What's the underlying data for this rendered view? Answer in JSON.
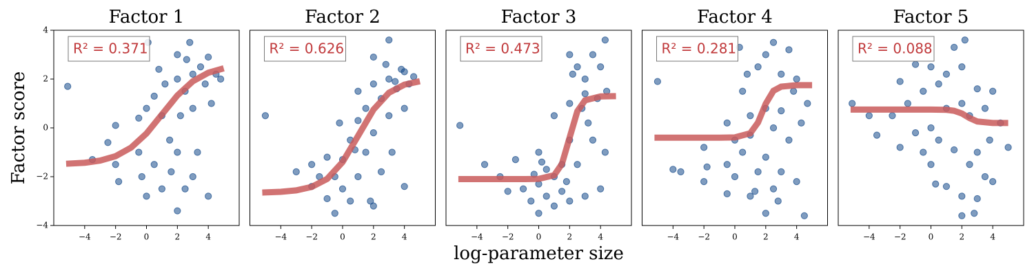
{
  "chart_data": [
    {
      "type": "scatter",
      "title": "Factor 1",
      "annotation": "R² = 0.371",
      "ylabel": "Factor score",
      "xlim": [
        -6,
        6
      ],
      "ylim": [
        -4,
        4
      ],
      "xticks": [
        {
          "value": -4,
          "label": "−4"
        },
        {
          "value": -2,
          "label": "−2"
        },
        0,
        2,
        4
      ],
      "yticks": [
        {
          "value": -4,
          "label": "−4"
        },
        {
          "value": -2,
          "label": "−2"
        },
        0,
        2,
        4
      ],
      "series": [
        {
          "type": "scatter",
          "color": "#154a8a",
          "x": [
            -5.1,
            -3.5,
            -2.5,
            -2,
            -2,
            -1.8,
            -0.5,
            -0.5,
            -0.3,
            0,
            0,
            0.1,
            0.5,
            0.5,
            1,
            1,
            1.2,
            1.5,
            2,
            2,
            2,
            2,
            2.2,
            2.5,
            2.5,
            2.8,
            3,
            3,
            3,
            3.3,
            3.5,
            3.8,
            4,
            4,
            4.2,
            4.5,
            4.8,
            1.6,
            0.8,
            2.6
          ],
          "values": [
            1.7,
            -1.3,
            -0.6,
            -1.5,
            0.1,
            -2.2,
            -1.0,
            0.4,
            -2.0,
            -2.8,
            0.8,
            3.5,
            -1.5,
            1.3,
            -2.5,
            0.5,
            1.8,
            -0.5,
            -3.4,
            -1.0,
            2.0,
            3.0,
            0.5,
            -2.5,
            1.5,
            3.5,
            -2.0,
            2.2,
            0.8,
            -1.0,
            2.5,
            1.8,
            -2.8,
            2.9,
            1.0,
            2.2,
            2.0,
            -1.8,
            2.4,
            2.8
          ]
        },
        {
          "type": "line",
          "color": "#c95b5b",
          "x": [
            -5.2,
            -4,
            -3,
            -2,
            -1,
            0,
            1,
            2,
            3,
            4,
            5
          ],
          "values": [
            -1.47,
            -1.43,
            -1.34,
            -1.16,
            -0.81,
            -0.23,
            0.55,
            1.33,
            1.91,
            2.26,
            2.44
          ]
        }
      ]
    },
    {
      "type": "scatter",
      "title": "Factor 2",
      "annotation": "R² = 0.626",
      "xlim": [
        -6,
        6
      ],
      "ylim": [
        -4,
        4
      ],
      "xticks": [
        {
          "value": -4,
          "label": "−4"
        },
        {
          "value": -2,
          "label": "−2"
        },
        0,
        2,
        4
      ],
      "series": [
        {
          "type": "scatter",
          "color": "#154a8a",
          "x": [
            -5,
            -3,
            -2,
            -2,
            -1,
            -1,
            -0.5,
            -0.5,
            -0.2,
            0,
            0,
            0.5,
            0.5,
            1,
            1,
            1,
            1.5,
            1.5,
            2,
            2,
            2,
            2,
            2.5,
            2.5,
            3,
            3,
            3,
            3.2,
            3.5,
            3.8,
            4,
            4,
            4,
            4.3,
            4.6,
            1.8,
            0.8,
            2.8,
            -1.5,
            3.4
          ],
          "values": [
            0.5,
            -1.8,
            -1.5,
            -2.4,
            -2.9,
            -1.2,
            -3.5,
            -2.0,
            0.2,
            -2.5,
            -1.3,
            -0.5,
            -3.0,
            -2.0,
            0.3,
            1.5,
            -1.0,
            0.8,
            -3.2,
            1.8,
            2.9,
            -0.2,
            1.2,
            -1.8,
            2.0,
            0.5,
            3.6,
            -1.0,
            1.6,
            2.4,
            0.8,
            -2.4,
            2.3,
            1.8,
            2.1,
            -3.0,
            -0.9,
            2.6,
            -2.0,
            1.9
          ]
        },
        {
          "type": "line",
          "color": "#c95b5b",
          "x": [
            -5.2,
            -4,
            -3,
            -2,
            -1,
            0,
            1,
            2,
            3,
            4,
            5
          ],
          "values": [
            -2.65,
            -2.62,
            -2.56,
            -2.42,
            -2.09,
            -1.4,
            -0.33,
            0.75,
            1.44,
            1.77,
            1.91
          ]
        }
      ]
    },
    {
      "type": "scatter",
      "title": "Factor 3",
      "annotation": "R² = 0.473",
      "xlabel": "log-parameter size",
      "xlim": [
        -6,
        6
      ],
      "ylim": [
        -4,
        4
      ],
      "xticks": [
        {
          "value": -4,
          "label": "−4"
        },
        {
          "value": -2,
          "label": "−2"
        },
        0,
        2,
        4
      ],
      "series": [
        {
          "type": "scatter",
          "color": "#154a8a",
          "x": [
            -5.1,
            -3.5,
            -2.5,
            -2,
            -1.5,
            -1,
            -0.5,
            -0.3,
            0,
            0,
            0,
            0.5,
            0.5,
            1,
            1,
            1,
            1.5,
            1.5,
            2,
            2,
            2,
            2,
            2.5,
            2.5,
            2.8,
            3,
            3,
            3,
            3.5,
            3.5,
            3.8,
            4,
            4,
            4.3,
            4.3,
            4.4,
            2.2,
            1.8,
            0.2,
            3.2
          ],
          "values": [
            0.1,
            -1.5,
            -2.0,
            -2.6,
            -1.3,
            -2.5,
            -3.0,
            -1.9,
            -3.5,
            -1.0,
            -2.3,
            -2.8,
            -1.7,
            -2.0,
            0.5,
            -3.2,
            -1.5,
            -2.6,
            3.0,
            -3.0,
            -0.5,
            1.0,
            2.5,
            -1.5,
            0.8,
            2.0,
            -2.8,
            1.4,
            -0.5,
            3.0,
            1.2,
            -2.5,
            2.5,
            3.6,
            -1.0,
            1.5,
            2.2,
            -2.2,
            -1.4,
            0.2
          ]
        },
        {
          "type": "line",
          "color": "#c95b5b",
          "x": [
            -5.2,
            -3,
            -1,
            0,
            1,
            1.5,
            2,
            2.5,
            3,
            4,
            5
          ],
          "values": [
            -2.1,
            -2.1,
            -2.1,
            -2.09,
            -1.94,
            -1.48,
            -0.4,
            0.68,
            1.13,
            1.29,
            1.3
          ]
        }
      ]
    },
    {
      "type": "scatter",
      "title": "Factor 4",
      "annotation": "R² = 0.281",
      "xlim": [
        -6,
        6
      ],
      "ylim": [
        -4,
        4
      ],
      "xticks": [
        {
          "value": -4,
          "label": "−4"
        },
        {
          "value": -2,
          "label": "−2"
        },
        0,
        2,
        4
      ],
      "series": [
        {
          "type": "scatter",
          "color": "#154a8a",
          "x": [
            -5,
            -4,
            -3.5,
            -2,
            -2,
            -1.8,
            -0.5,
            -0.5,
            -0.5,
            0,
            0,
            0.3,
            0.5,
            0.5,
            1,
            1,
            1,
            1.5,
            1.5,
            2,
            2,
            2,
            2,
            2.5,
            2.5,
            2.5,
            3,
            3,
            3,
            3.5,
            3.5,
            3.8,
            4,
            4,
            4.3,
            4.5,
            4.7,
            1.3,
            0.8,
            2.8
          ],
          "values": [
            1.9,
            -1.7,
            -1.8,
            -2.2,
            -0.8,
            -1.6,
            0.2,
            -1.5,
            -2.7,
            -0.5,
            -2.0,
            3.3,
            1.5,
            -1.0,
            -2.8,
            0.5,
            -0.3,
            2.5,
            -1.8,
            3.0,
            -3.5,
            0.8,
            -1.2,
            3.5,
            0.0,
            -2.5,
            2.2,
            -1.8,
            0.7,
            3.2,
            -0.5,
            1.5,
            -2.2,
            2.0,
            0.2,
            -3.6,
            1.0,
            -2.6,
            2.2,
            -3.0
          ]
        },
        {
          "type": "line",
          "color": "#c95b5b",
          "x": [
            -5.2,
            -3,
            -1,
            0,
            1,
            1.5,
            2,
            2.5,
            3,
            4,
            5
          ],
          "values": [
            -0.4,
            -0.4,
            -0.4,
            -0.39,
            -0.22,
            0.22,
            0.99,
            1.52,
            1.69,
            1.75,
            1.75
          ]
        }
      ]
    },
    {
      "type": "scatter",
      "title": "Factor 5",
      "annotation": "R² = 0.088",
      "xlim": [
        -6,
        6
      ],
      "ylim": [
        -4,
        4
      ],
      "xticks": [
        {
          "value": -4,
          "label": "−4"
        },
        {
          "value": -2,
          "label": "−2"
        },
        0,
        2,
        4
      ],
      "series": [
        {
          "type": "scatter",
          "color": "#154a8a",
          "x": [
            -5.1,
            -4,
            -3.5,
            -2.5,
            -2,
            -2,
            -1.5,
            -1,
            -1,
            -0.5,
            -0.5,
            0,
            0,
            0,
            0.5,
            0.5,
            1,
            1,
            1,
            1.5,
            1.5,
            2,
            2,
            2,
            2,
            2.2,
            2.5,
            2.5,
            2.8,
            3,
            3,
            3,
            3.5,
            3.5,
            3.8,
            4,
            4,
            4.5,
            5,
            0.3
          ],
          "values": [
            1.0,
            0.5,
            -0.3,
            0.5,
            1.9,
            -0.8,
            1.0,
            2.6,
            -0.2,
            1.5,
            -1.0,
            2.5,
            0.0,
            -1.5,
            1.8,
            -0.5,
            2.2,
            0.8,
            -2.4,
            3.3,
            -0.9,
            1.0,
            -2.8,
            -3.6,
            2.5,
            3.6,
            -1.5,
            0.5,
            -3.5,
            1.6,
            -1.0,
            -2.9,
            0.8,
            -2.0,
            -0.5,
            1.5,
            -2.2,
            0.2,
            -0.8,
            -2.3
          ]
        },
        {
          "type": "line",
          "color": "#c95b5b",
          "x": [
            -5.2,
            -3,
            -1,
            0,
            1,
            1.5,
            2,
            2.5,
            3,
            4,
            5
          ],
          "values": [
            0.75,
            0.75,
            0.75,
            0.75,
            0.74,
            0.7,
            0.59,
            0.4,
            0.26,
            0.2,
            0.2
          ]
        }
      ]
    }
  ]
}
